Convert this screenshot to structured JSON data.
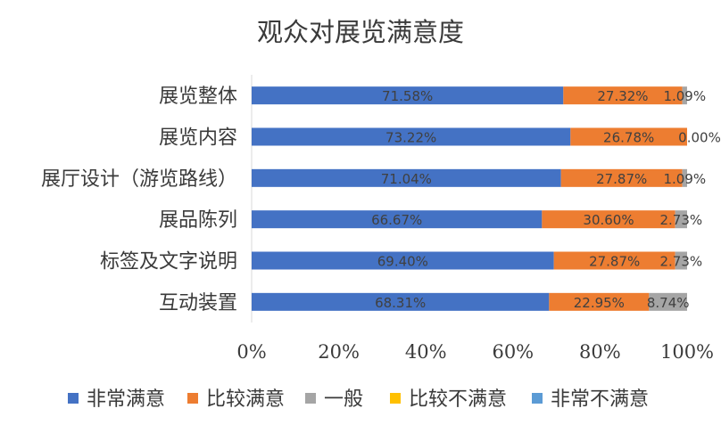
{
  "chart_data": {
    "type": "bar",
    "orientation": "horizontal",
    "stacked": true,
    "percent": true,
    "title": "观众对展览满意度",
    "categories": [
      "展览整体",
      "展览内容",
      "展厅设计（游览路线）",
      "展品陈列",
      "标签及文字说明",
      "互动装置"
    ],
    "series": [
      {
        "name": "非常满意",
        "color": "#4472C4",
        "values": [
          71.58,
          73.22,
          71.04,
          66.67,
          69.4,
          68.31
        ],
        "labels": [
          "71.58%",
          "73.22%",
          "71.04%",
          "66.67%",
          "69.40%",
          "68.31%"
        ]
      },
      {
        "name": "比较满意",
        "color": "#ED7D31",
        "values": [
          27.32,
          26.78,
          27.87,
          30.6,
          27.87,
          22.95
        ],
        "labels": [
          "27.32%",
          "26.78%",
          "27.87%",
          "30.60%",
          "27.87%",
          "22.95%"
        ]
      },
      {
        "name": "一般",
        "color": "#A5A5A5",
        "values": [
          1.09,
          0.0,
          1.09,
          2.73,
          2.73,
          8.74
        ],
        "labels": [
          "1.09%",
          "0.00%",
          "1.09%",
          "2.73%",
          "2.73%",
          "8.74%"
        ]
      },
      {
        "name": "比较不满意",
        "color": "#FFC000",
        "values": [
          0,
          0,
          0,
          0,
          0,
          0
        ],
        "labels": [
          "",
          "",
          "",
          "",
          "",
          ""
        ]
      },
      {
        "name": "非常不满意",
        "color": "#5B9BD5",
        "values": [
          0,
          0,
          0,
          0,
          0,
          0
        ],
        "labels": [
          "",
          "",
          "",
          "",
          "",
          ""
        ]
      }
    ],
    "xlim": [
      0,
      100
    ],
    "xticks": [
      "0%",
      "20%",
      "40%",
      "60%",
      "80%",
      "100%"
    ],
    "grid": false,
    "legend_position": "bottom"
  }
}
